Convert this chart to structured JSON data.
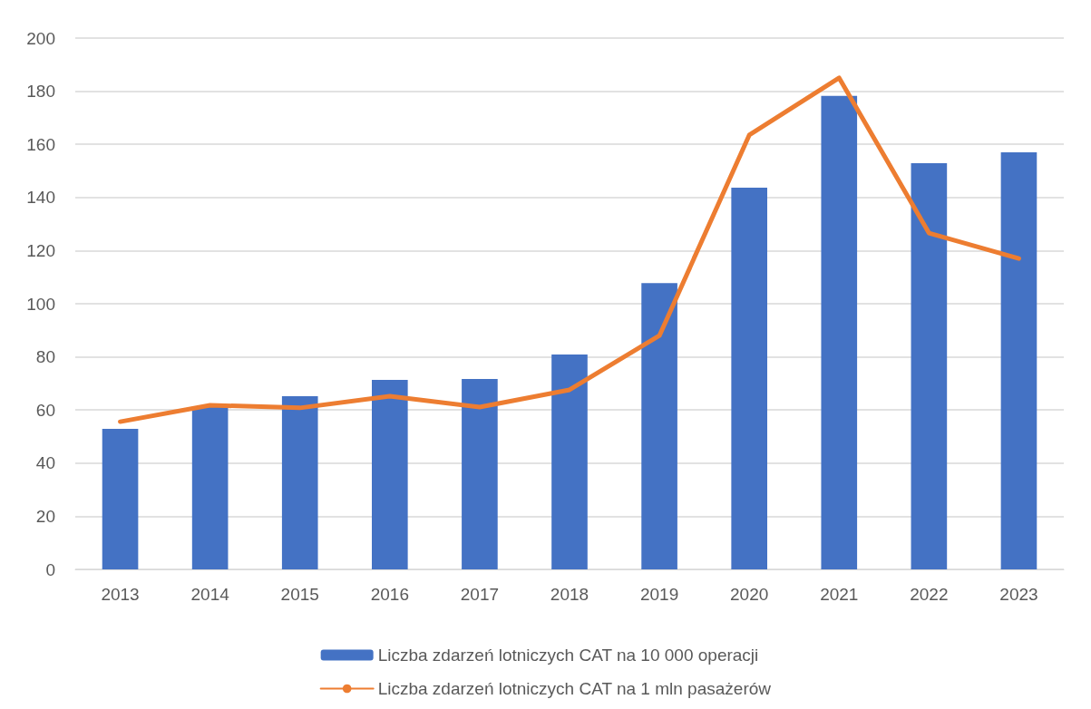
{
  "chart_data": {
    "type": "bar",
    "categories": [
      "2013",
      "2014",
      "2015",
      "2016",
      "2017",
      "2018",
      "2019",
      "2020",
      "2021",
      "2022",
      "2023"
    ],
    "series": [
      {
        "name": "Liczba zdarzeń lotniczych CAT na 10 000 operacji",
        "color": "#4472c4",
        "values": [
          52.9,
          61.4,
          65.2,
          71.3,
          71.7,
          80.9,
          107.8,
          143.7,
          178.2,
          152.9,
          157
        ]
      },
      {
        "name": "Liczba zdarzeń lotniczych CAT na 1 mln pasażerów",
        "type": "line",
        "color": "#ed7d31",
        "values": [
          55.6,
          61.8,
          60.8,
          65.2,
          61.1,
          67.6,
          88,
          163.5,
          185,
          126.6,
          117
        ]
      }
    ],
    "ylim": [
      0,
      200
    ],
    "yticks": [
      0,
      20,
      40,
      60,
      80,
      100,
      120,
      140,
      160,
      180,
      200
    ],
    "grid": "y",
    "legend": "bottom",
    "marker": "none",
    "line_style": "solid"
  }
}
